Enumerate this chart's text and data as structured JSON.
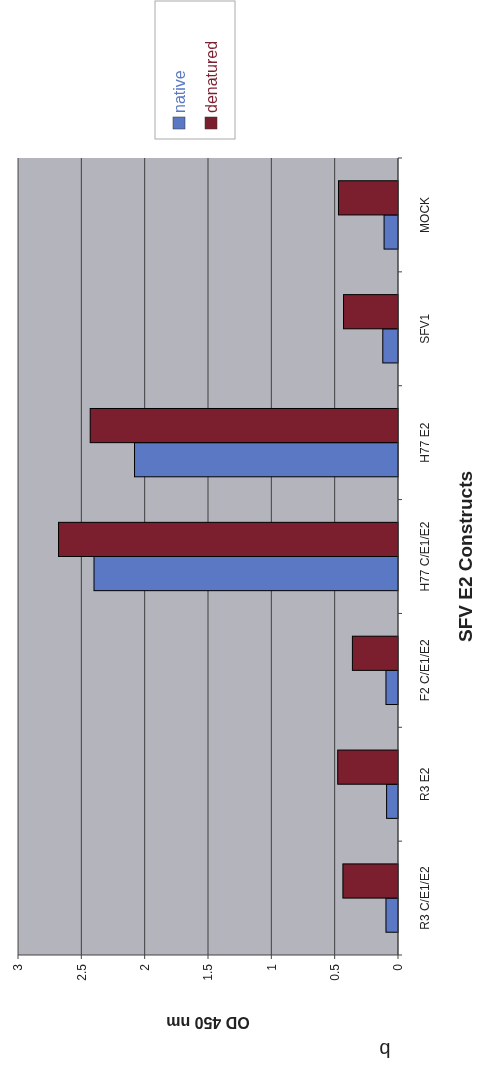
{
  "chart_data": {
    "type": "bar",
    "orientation": "horizontal",
    "xlabel": "OD 450 nm",
    "ylabel": "SFV E2 Constructs",
    "annotations": [
      "b"
    ],
    "categories": [
      "MOCK",
      "SFV1",
      "H77 E2",
      "H77 C/E1/E2",
      "F2 C/E1/E2",
      "R3 E2",
      "R3 C/E1/E2"
    ],
    "series": [
      {
        "name": "native",
        "color": "#5a78c4",
        "values": [
          0.11,
          0.12,
          2.08,
          2.4,
          0.095,
          0.09,
          0.095
        ]
      },
      {
        "name": "denatured",
        "color": "#7b1f2e",
        "values": [
          0.47,
          0.43,
          2.43,
          2.68,
          0.36,
          0.476,
          0.435
        ]
      }
    ],
    "xlim": [
      3,
      0
    ],
    "xticks": [
      0,
      0.5,
      1,
      1.5,
      2,
      2.5,
      3
    ],
    "grid": "x",
    "legend": "top"
  }
}
